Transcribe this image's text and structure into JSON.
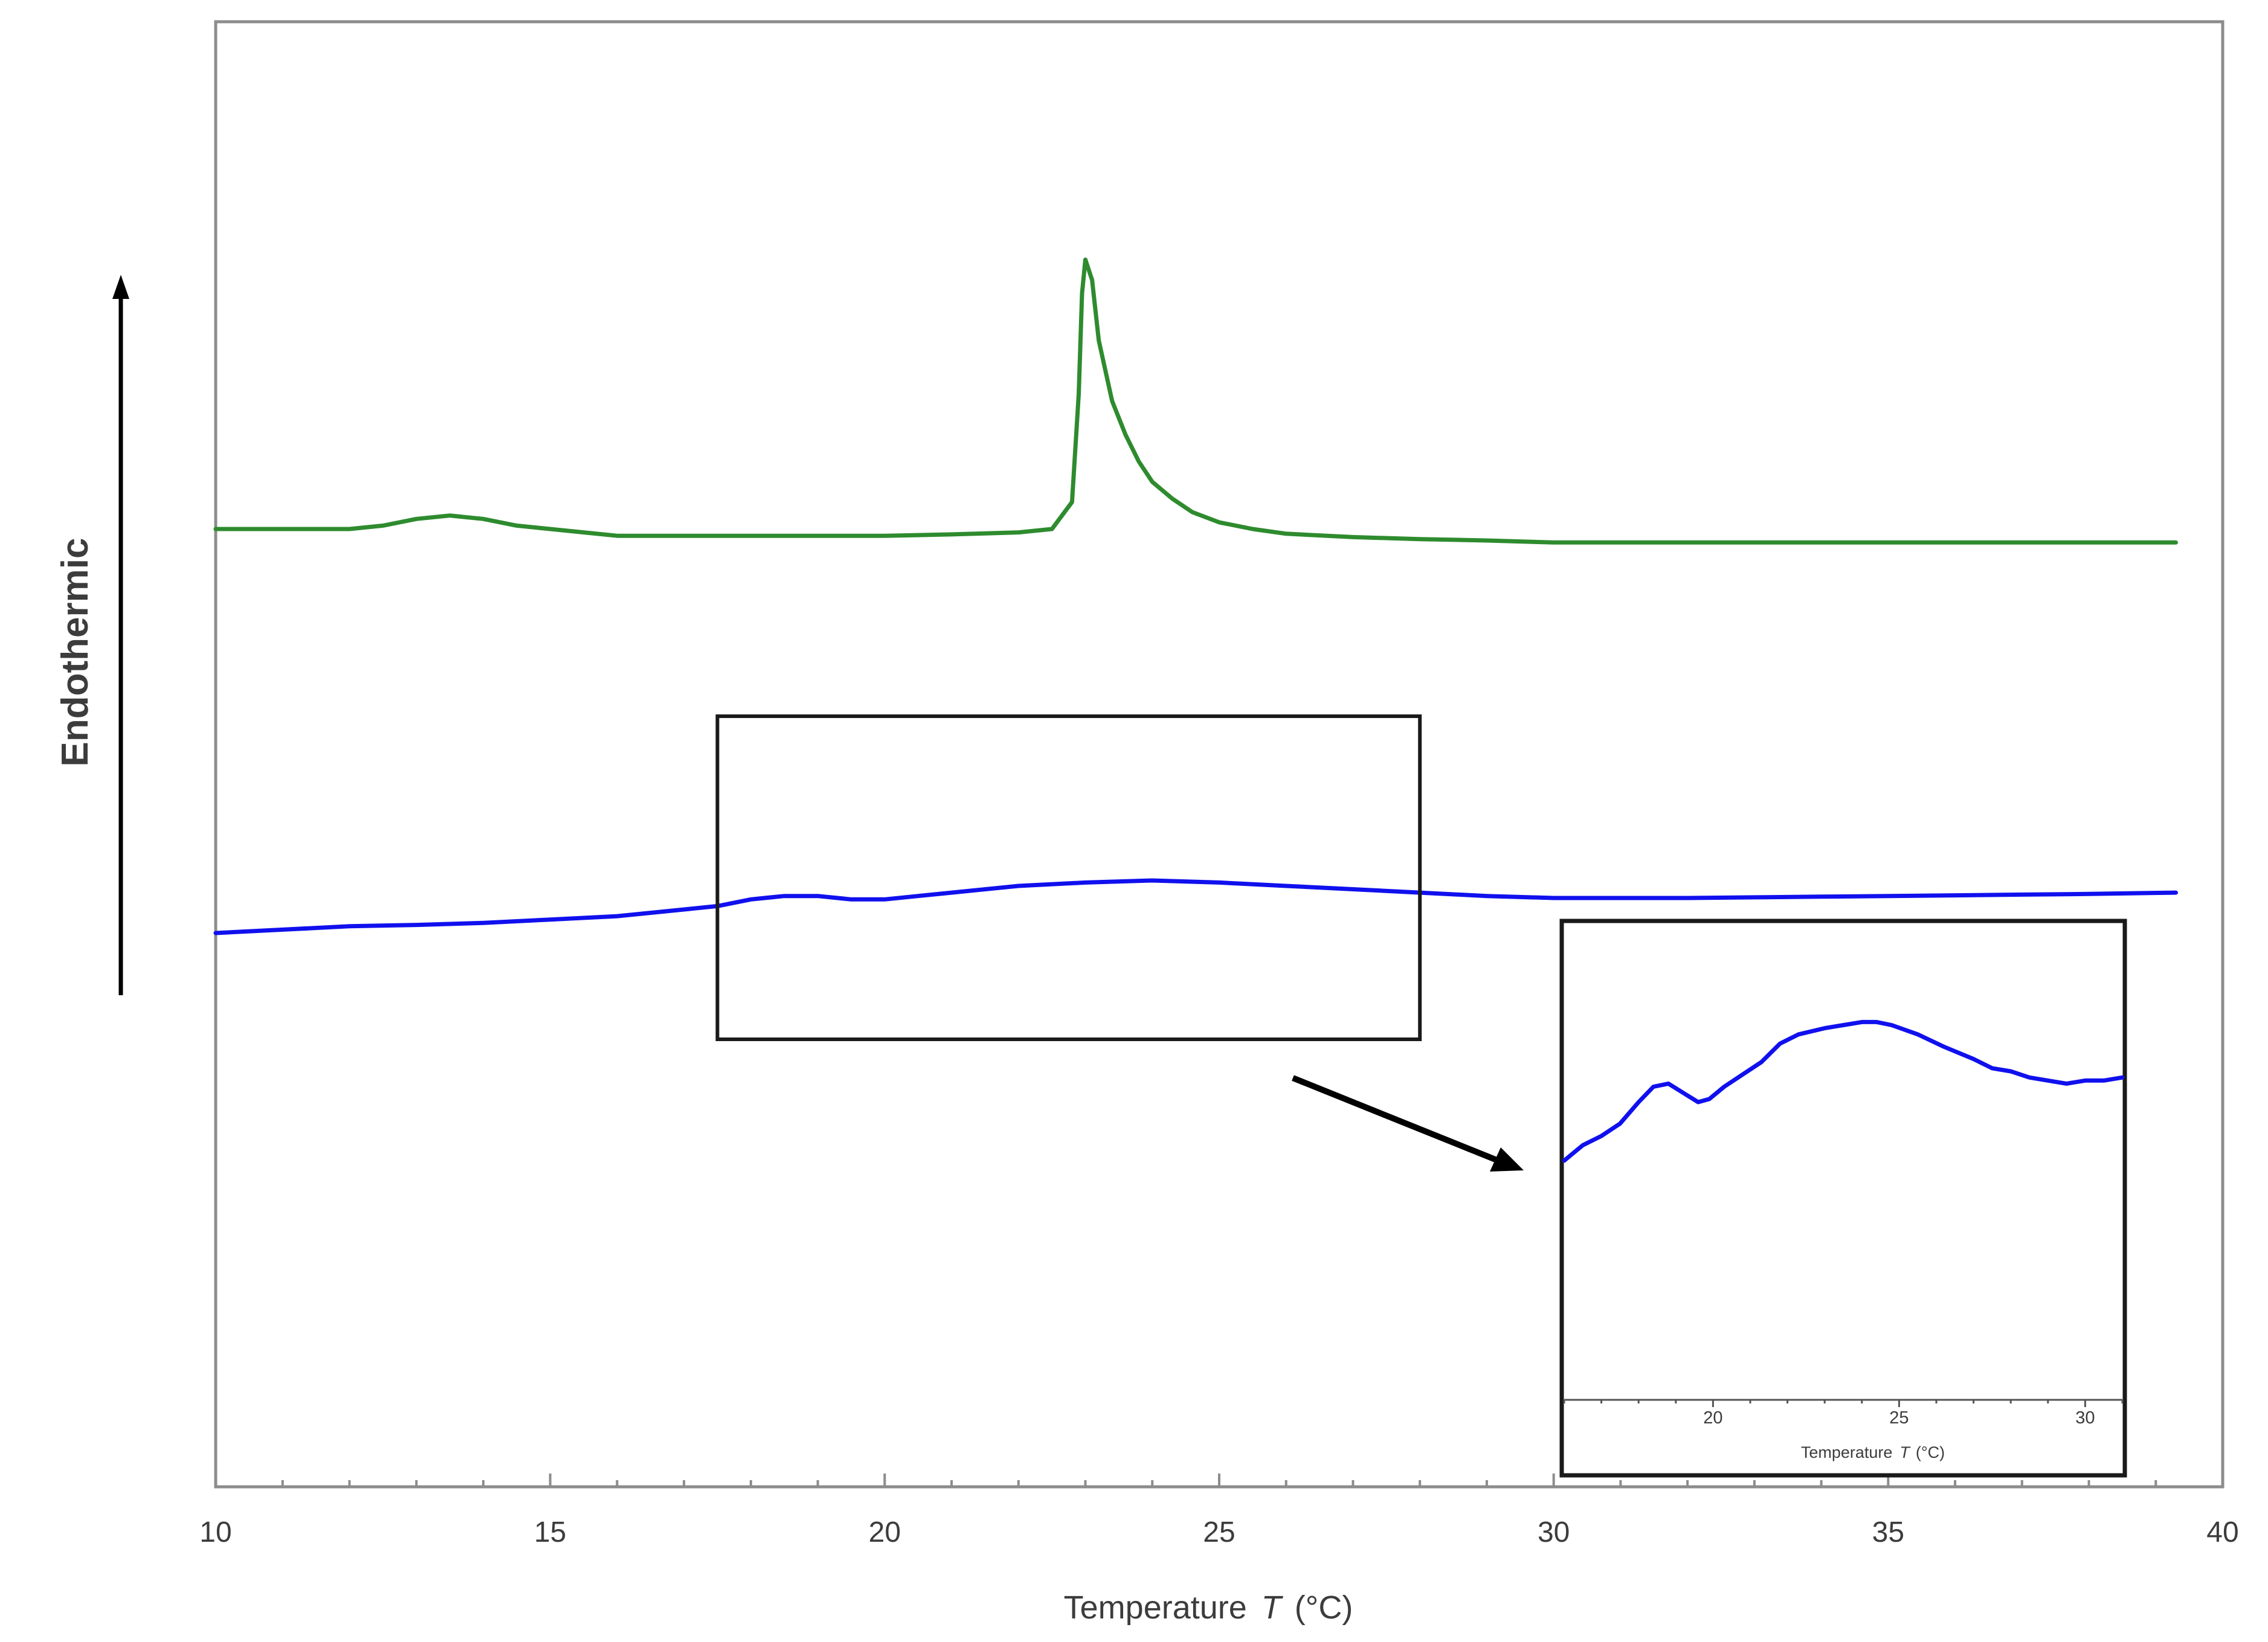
{
  "chart_data": {
    "type": "line",
    "xlabel": {
      "text": "Temperature",
      "symbol": "T",
      "unit": "(°C)"
    },
    "ylabel": "Endothermic",
    "xlim": [
      10,
      40
    ],
    "x_ticks": [
      10,
      15,
      20,
      25,
      30,
      35,
      40
    ],
    "y_ticks": [],
    "grid": false,
    "series": [
      {
        "color": "#2e8b2e",
        "x": [
          10,
          11,
          12,
          12.5,
          13,
          13.5,
          14,
          14.5,
          15,
          16,
          17,
          18,
          19,
          20,
          21,
          22,
          22.5,
          22.8,
          22.9,
          22.95,
          23.0,
          23.1,
          23.2,
          23.4,
          23.6,
          23.8,
          24.0,
          24.3,
          24.6,
          25.0,
          25.5,
          26,
          27,
          28,
          29,
          30,
          32,
          35,
          37,
          39.3
        ],
        "y": [
          0.6,
          0.6,
          0.6,
          0.605,
          0.615,
          0.62,
          0.615,
          0.605,
          0.6,
          0.59,
          0.59,
          0.59,
          0.59,
          0.59,
          0.592,
          0.595,
          0.6,
          0.64,
          0.8,
          0.95,
          1.0,
          0.97,
          0.88,
          0.79,
          0.74,
          0.7,
          0.67,
          0.645,
          0.625,
          0.61,
          0.6,
          0.593,
          0.588,
          0.585,
          0.583,
          0.58,
          0.58,
          0.58,
          0.58,
          0.58
        ]
      },
      {
        "color": "#1010ee",
        "x": [
          10,
          11,
          12,
          13,
          14,
          15,
          16,
          17,
          17.5,
          18,
          18.5,
          19,
          19.5,
          20,
          20.5,
          21,
          22,
          23,
          24,
          25,
          26,
          27,
          28,
          29,
          30,
          31,
          32,
          33,
          34,
          35,
          36,
          37,
          38,
          39.3
        ],
        "y": [
          0.0,
          0.005,
          0.01,
          0.012,
          0.015,
          0.02,
          0.025,
          0.035,
          0.04,
          0.05,
          0.055,
          0.055,
          0.05,
          0.05,
          0.055,
          0.06,
          0.07,
          0.075,
          0.078,
          0.075,
          0.07,
          0.065,
          0.06,
          0.055,
          0.052,
          0.052,
          0.052,
          0.053,
          0.054,
          0.055,
          0.056,
          0.057,
          0.058,
          0.06
        ]
      }
    ],
    "zoom_region": {
      "x": [
        17.5,
        28.0
      ]
    },
    "inset": {
      "x_ticks": [
        20,
        25,
        30
      ],
      "xlim": [
        16.0,
        31.0
      ],
      "xlabel": {
        "text": "Temperature",
        "symbol": "T",
        "unit": "(°C)"
      },
      "series": {
        "color": "#1010ee",
        "x": [
          16.0,
          16.5,
          17.0,
          17.5,
          18.0,
          18.4,
          18.8,
          19.2,
          19.6,
          19.9,
          20.3,
          20.8,
          21.3,
          21.8,
          22.3,
          23.0,
          23.5,
          24.0,
          24.4,
          24.8,
          25.5,
          26.2,
          27.0,
          27.5,
          28.0,
          28.5,
          29.0,
          29.5,
          30.0,
          30.5,
          31.0
        ],
        "y": [
          0.66,
          0.71,
          0.74,
          0.78,
          0.85,
          0.9,
          0.91,
          0.88,
          0.85,
          0.86,
          0.9,
          0.94,
          0.98,
          1.04,
          1.07,
          1.09,
          1.1,
          1.11,
          1.11,
          1.1,
          1.07,
          1.03,
          0.99,
          0.96,
          0.95,
          0.93,
          0.92,
          0.91,
          0.92,
          0.92,
          0.93
        ]
      }
    }
  }
}
